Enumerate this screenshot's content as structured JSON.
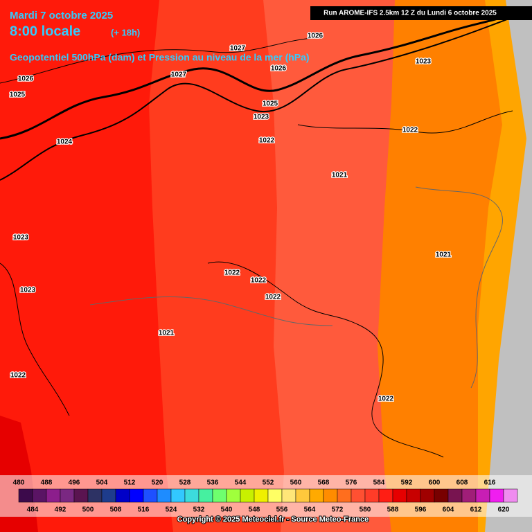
{
  "header": {
    "date": "Mardi 7 octobre 2025",
    "time": "8:00 locale",
    "lead": "(+ 18h)",
    "title": "Geopotentiel 500hPa (dam) et Pression au niveau de la mer (hPa)",
    "run": "Run AROME-IFS 2.5km 12 Z du Lundi 6 octobre 2025"
  },
  "isobar_labels": [
    "1026",
    "1027",
    "1026",
    "1023",
    "1026",
    "1025",
    "1027",
    "1025",
    "1023",
    "1022",
    "1024",
    "1022",
    "1021",
    "1023",
    "1021",
    "1022",
    "1022",
    "1022",
    "1023",
    "1021",
    "1022",
    "1022"
  ],
  "legend": {
    "levels": [
      480,
      484,
      488,
      492,
      496,
      500,
      504,
      508,
      512,
      516,
      520,
      524,
      528,
      532,
      536,
      540,
      544,
      548,
      552,
      556,
      560,
      564,
      568,
      572,
      576,
      580,
      584,
      588,
      592,
      596,
      600,
      604,
      608,
      612,
      616,
      620
    ],
    "colors": [
      "#3c0a4b",
      "#5a1464",
      "#8c1e8c",
      "#7a2882",
      "#5a1450",
      "#2d3264",
      "#1e3c8c",
      "#0000c8",
      "#0000ff",
      "#1e50ff",
      "#1e8cff",
      "#32c8ff",
      "#3cdcdc",
      "#46f0a0",
      "#6eff6e",
      "#a0ff3c",
      "#c8f000",
      "#f0f000",
      "#ffff64",
      "#ffe678",
      "#ffc83c",
      "#ffaa00",
      "#ff8c00",
      "#ff6e1e",
      "#ff5032",
      "#ff3c28",
      "#ff1e14",
      "#e60000",
      "#c80000",
      "#a00000",
      "#780000",
      "#781450",
      "#a01e78",
      "#c81eb4",
      "#f01ef0",
      "#f08cf0"
    ]
  },
  "footer": "Copyright © 2025 Meteociel.fr - Source Meteo-France"
}
